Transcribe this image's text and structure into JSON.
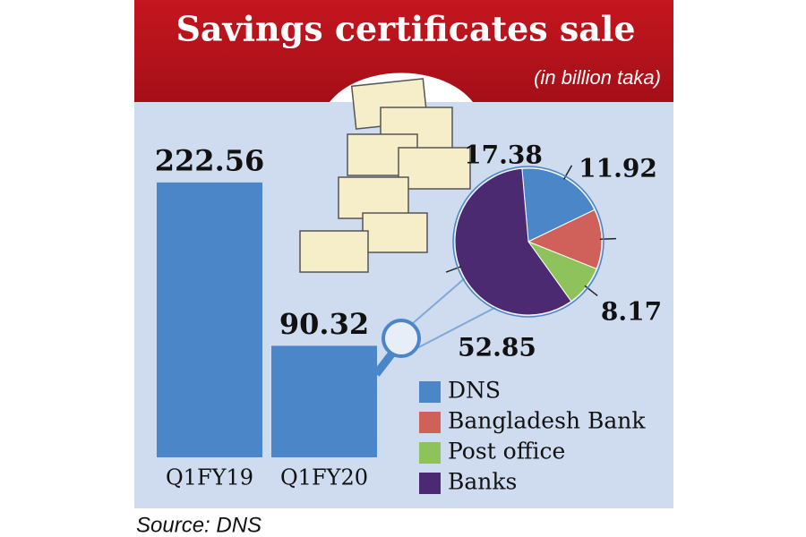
{
  "title": "Savings certificates sale",
  "subtitle": "(in billion taka)",
  "source": "Source: DNS",
  "chart_data": [
    {
      "type": "bar",
      "categories": [
        "Q1FY19",
        "Q1FY20"
      ],
      "values": [
        222.56,
        90.32
      ],
      "color": "#4a86c8"
    },
    {
      "type": "pie",
      "categories": [
        "DNS",
        "Bangladesh Bank",
        "Post office",
        "Banks"
      ],
      "values": [
        17.38,
        11.92,
        8.17,
        52.85
      ],
      "colors": [
        "#4a86c8",
        "#d0605a",
        "#8dc35a",
        "#4b2a72"
      ]
    }
  ]
}
